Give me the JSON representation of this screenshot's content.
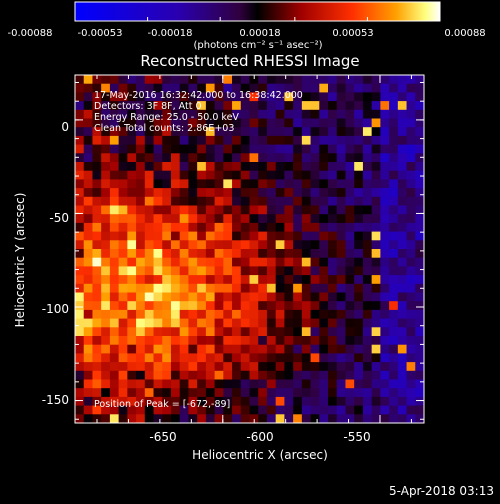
{
  "colorbar": {
    "ticks": [
      "-0.00088",
      "-0.00053",
      "-0.00018",
      "0.00018",
      "0.00053",
      "0.00088"
    ],
    "unit_label": "(photons cm⁻² s⁻¹ asec⁻²)",
    "range": [
      -0.00088,
      0.00088
    ]
  },
  "title": "Reconstructed RHESSI Image",
  "info": {
    "line1": "17-May-2016 16:32:42.000 to 16:38:42.000",
    "line2": "Detectors: 3F 8F, Att 0",
    "line3": "Energy Range: 25.0 - 50.0 keV",
    "line4": "Clean     Total counts: 2.86E+03",
    "peak": "Position of Peak = [-672,-89]"
  },
  "axes": {
    "xlabel": "Heliocentric X (arcsec)",
    "ylabel": "Heliocentric Y (arcsec)",
    "xticks": [
      "-650",
      "-600",
      "-550"
    ],
    "yticks": [
      "0",
      "-50",
      "-100",
      "-150"
    ]
  },
  "footer": {
    "timestamp": "5-Apr-2018 03:13"
  },
  "chart_data": {
    "type": "heatmap",
    "title": "Reconstructed RHESSI Image",
    "xlabel": "Heliocentric X (arcsec)",
    "ylabel": "Heliocentric Y (arcsec)",
    "xlim": [
      -697,
      -586
    ],
    "ylim": [
      -162,
      24
    ],
    "xticks": [
      -650,
      -600,
      -550
    ],
    "yticks": [
      0,
      -50,
      -100,
      -150
    ],
    "peak": [
      -672,
      -89
    ],
    "colorbar_range": [
      -0.00088,
      0.00088
    ],
    "colormap": "rhessi-blue-purple-red-yellow-white",
    "colors": {
      "background": "#000000",
      "text": "#ffffff"
    }
  }
}
